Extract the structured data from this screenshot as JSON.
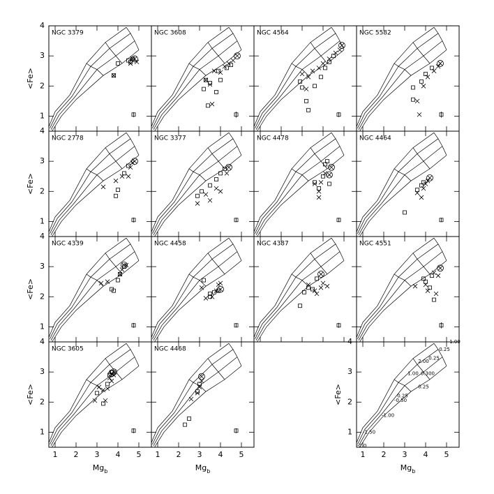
{
  "model_grid": {
    "lines": [
      {
        "x": [
          0.85,
          1.3,
          2.0,
          3.3,
          4.2,
          5.0
        ],
        "y": [
          0.5,
          1.0,
          1.55,
          2.35,
          2.75,
          3.2
        ]
      },
      {
        "x": [
          0.8,
          1.2,
          1.9,
          3.0,
          3.9,
          4.8
        ],
        "y": [
          0.55,
          1.05,
          1.6,
          2.55,
          3.0,
          3.5
        ]
      },
      {
        "x": [
          0.75,
          1.1,
          1.8,
          2.7,
          3.6,
          4.6
        ],
        "y": [
          0.6,
          1.1,
          1.65,
          2.65,
          3.25,
          3.75
        ]
      },
      {
        "x": [
          0.7,
          1.0,
          1.7,
          2.5,
          3.4,
          4.4
        ],
        "y": [
          0.65,
          1.15,
          1.7,
          2.75,
          3.45,
          3.95
        ]
      },
      {
        "x": [
          3.3,
          3.0,
          2.7,
          2.5
        ],
        "y": [
          2.35,
          2.55,
          2.65,
          2.75
        ]
      },
      {
        "x": [
          4.2,
          3.9,
          3.6,
          3.4
        ],
        "y": [
          2.75,
          3.0,
          3.25,
          3.45
        ]
      },
      {
        "x": [
          5.0,
          4.8,
          4.6,
          4.4
        ],
        "y": [
          3.2,
          3.5,
          3.75,
          3.95
        ]
      }
    ]
  },
  "chart_data": [
    {
      "type": "scatter",
      "title": "NGC 3379",
      "ylabel": "<Fe>",
      "xlim": [
        0.7,
        5.6
      ],
      "ylim": [
        0.5,
        4
      ],
      "xticks": [
        1,
        2,
        3,
        4,
        5
      ],
      "yticks": [
        1,
        2,
        3,
        4
      ],
      "series": [
        {
          "marker": "square",
          "x": [
            4.0,
            3.8,
            4.5,
            4.6,
            4.7
          ],
          "y": [
            2.75,
            2.35,
            2.85,
            2.8,
            2.9
          ]
        },
        {
          "marker": "cross",
          "x": [
            3.8,
            4.6,
            4.7,
            4.9
          ],
          "y": [
            2.35,
            2.75,
            2.9,
            2.8
          ]
        },
        {
          "marker": "circle-cross",
          "x": [
            4.8
          ],
          "y": [
            2.9
          ]
        }
      ],
      "errorbar": {
        "x": 4.75,
        "y": 1.05,
        "yerr": 0.08
      }
    },
    {
      "type": "scatter",
      "title": "NGC 3608",
      "xlim": [
        0.7,
        5.6
      ],
      "ylim": [
        0.5,
        4
      ],
      "xticks": [
        1,
        2,
        3,
        4,
        5
      ],
      "yticks": [
        1,
        2,
        3,
        4
      ],
      "series": [
        {
          "marker": "square",
          "x": [
            3.2,
            3.5,
            3.4,
            3.8,
            4.0,
            4.3,
            4.5,
            3.3,
            3.9
          ],
          "y": [
            1.9,
            2.1,
            1.35,
            1.8,
            2.2,
            2.6,
            2.7,
            2.2,
            2.5
          ]
        },
        {
          "marker": "cross",
          "x": [
            3.3,
            3.5,
            3.7,
            4.0,
            4.2,
            4.4,
            4.6,
            3.6
          ],
          "y": [
            2.2,
            2.05,
            2.5,
            2.45,
            2.65,
            2.75,
            2.85,
            1.4
          ]
        },
        {
          "marker": "circle-cross",
          "x": [
            4.8
          ],
          "y": [
            3.0
          ]
        }
      ],
      "errorbar": {
        "x": 4.75,
        "y": 1.05,
        "yerr": 0.1
      }
    },
    {
      "type": "scatter",
      "title": "NGC 4564",
      "xlim": [
        0.7,
        5.6
      ],
      "ylim": [
        0.5,
        4
      ],
      "xticks": [
        1,
        2,
        3,
        4,
        5
      ],
      "yticks": [
        1,
        2,
        3,
        4
      ],
      "series": [
        {
          "marker": "square",
          "x": [
            2.9,
            3.2,
            3.6,
            3.9,
            4.1,
            4.3,
            3.3,
            3.0,
            4.5
          ],
          "y": [
            2.15,
            1.5,
            2.0,
            2.3,
            2.6,
            2.8,
            1.2,
            1.95,
            3.0
          ]
        },
        {
          "marker": "cross",
          "x": [
            3.0,
            3.3,
            3.5,
            3.8,
            4.0,
            4.3,
            4.6,
            4.8,
            3.2
          ],
          "y": [
            2.4,
            2.3,
            2.5,
            2.6,
            2.75,
            2.9,
            3.1,
            3.2,
            1.9
          ]
        },
        {
          "marker": "circle-cross",
          "x": [
            4.9
          ],
          "y": [
            3.35
          ]
        }
      ],
      "errorbar": {
        "x": 4.75,
        "y": 1.05,
        "yerr": 0.08
      }
    },
    {
      "type": "scatter",
      "title": "NGC 5582",
      "xlim": [
        0.7,
        5.6
      ],
      "ylim": [
        0.5,
        4
      ],
      "xticks": [
        1,
        2,
        3,
        4,
        5
      ],
      "yticks": [
        1,
        2,
        3,
        4
      ],
      "series": [
        {
          "marker": "square",
          "x": [
            3.4,
            3.8,
            4.0,
            4.3,
            3.4
          ],
          "y": [
            1.95,
            2.15,
            2.4,
            2.6,
            1.55
          ]
        },
        {
          "marker": "cross",
          "x": [
            3.6,
            3.9,
            4.1,
            4.4,
            4.6,
            3.7
          ],
          "y": [
            1.5,
            2.0,
            2.3,
            2.5,
            2.65,
            1.05
          ]
        },
        {
          "marker": "circle-cross",
          "x": [
            4.7
          ],
          "y": [
            2.75
          ]
        }
      ],
      "errorbar": {
        "x": 4.75,
        "y": 1.05,
        "yerr": 0.1
      }
    },
    {
      "type": "scatter",
      "title": "NGC 2778",
      "ylabel": "<Fe>",
      "xlim": [
        0.7,
        5.6
      ],
      "ylim": [
        0.5,
        4
      ],
      "xticks": [
        1,
        2,
        3,
        4,
        5
      ],
      "yticks": [
        1,
        2,
        3,
        4
      ],
      "series": [
        {
          "marker": "square",
          "x": [
            4.0,
            4.3,
            4.5,
            3.9
          ],
          "y": [
            2.05,
            2.6,
            2.85,
            1.85
          ]
        },
        {
          "marker": "cross",
          "x": [
            3.3,
            3.9,
            4.2,
            4.5,
            4.6,
            4.7
          ],
          "y": [
            2.15,
            2.35,
            2.5,
            2.5,
            2.8,
            2.95
          ]
        },
        {
          "marker": "circle-cross",
          "x": [
            4.8
          ],
          "y": [
            3.0
          ]
        }
      ],
      "errorbar": {
        "x": 4.75,
        "y": 1.05,
        "yerr": 0.08
      }
    },
    {
      "type": "scatter",
      "title": "NGC 3377",
      "xlim": [
        0.7,
        5.6
      ],
      "ylim": [
        0.5,
        4
      ],
      "xticks": [
        1,
        2,
        3,
        4,
        5
      ],
      "yticks": [
        1,
        2,
        3,
        4
      ],
      "series": [
        {
          "marker": "square",
          "x": [
            2.9,
            3.1,
            3.5,
            3.8,
            4.0,
            4.2
          ],
          "y": [
            1.85,
            2.0,
            2.2,
            2.4,
            2.6,
            2.75
          ]
        },
        {
          "marker": "cross",
          "x": [
            2.9,
            3.3,
            3.5,
            3.8,
            4.0,
            4.3
          ],
          "y": [
            1.6,
            1.9,
            1.7,
            2.1,
            2.0,
            2.6
          ]
        },
        {
          "marker": "circle-cross",
          "x": [
            4.4
          ],
          "y": [
            2.8
          ]
        }
      ],
      "errorbar": {
        "x": 4.75,
        "y": 1.05,
        "yerr": 0.07
      }
    },
    {
      "type": "scatter",
      "title": "NGC 4478",
      "xlim": [
        0.7,
        5.6
      ],
      "ylim": [
        0.5,
        4
      ],
      "xticks": [
        1,
        2,
        3,
        4,
        5
      ],
      "yticks": [
        1,
        2,
        3,
        4
      ],
      "series": [
        {
          "marker": "square",
          "x": [
            3.6,
            3.8,
            4.0,
            4.1,
            4.2,
            4.3
          ],
          "y": [
            2.3,
            2.1,
            2.5,
            2.9,
            3.0,
            2.25
          ]
        },
        {
          "marker": "cross",
          "x": [
            3.6,
            3.8,
            3.9,
            4.1,
            3.8
          ],
          "y": [
            2.25,
            2.0,
            2.3,
            2.6,
            1.8
          ]
        },
        {
          "marker": "circle-cross",
          "x": [
            4.4,
            4.3
          ],
          "y": [
            2.8,
            2.55
          ]
        }
      ],
      "errorbar": {
        "x": 4.75,
        "y": 1.05,
        "yerr": 0.07
      }
    },
    {
      "type": "scatter",
      "title": "NGC 4464",
      "xlim": [
        0.7,
        5.6
      ],
      "ylim": [
        0.5,
        4
      ],
      "xticks": [
        1,
        2,
        3,
        4,
        5
      ],
      "yticks": [
        1,
        2,
        3,
        4
      ],
      "series": [
        {
          "marker": "square",
          "x": [
            3.0,
            3.6,
            3.8,
            3.9
          ],
          "y": [
            1.3,
            2.05,
            2.2,
            2.3
          ]
        },
        {
          "marker": "cross",
          "x": [
            3.6,
            3.8,
            3.9,
            4.0,
            4.1
          ],
          "y": [
            1.95,
            1.8,
            2.1,
            2.25,
            2.35
          ]
        },
        {
          "marker": "circle-cross",
          "x": [
            4.2
          ],
          "y": [
            2.45
          ]
        }
      ],
      "errorbar": {
        "x": 4.75,
        "y": 1.05,
        "yerr": 0.07
      }
    },
    {
      "type": "scatter",
      "title": "NGC 4339",
      "ylabel": "<Fe>",
      "xlim": [
        0.7,
        5.6
      ],
      "ylim": [
        0.5,
        4
      ],
      "xticks": [
        1,
        2,
        3,
        4,
        5
      ],
      "yticks": [
        1,
        2,
        3,
        4
      ],
      "series": [
        {
          "marker": "square",
          "x": [
            3.7,
            3.8,
            4.0,
            4.1,
            4.3
          ],
          "y": [
            2.25,
            2.2,
            2.55,
            2.75,
            3.0
          ]
        },
        {
          "marker": "cross",
          "x": [
            3.2,
            3.5,
            4.1,
            4.2,
            4.4
          ],
          "y": [
            2.45,
            2.5,
            2.75,
            2.9,
            3.05
          ]
        },
        {
          "marker": "circle-cross",
          "x": [
            4.3
          ],
          "y": [
            3.05
          ]
        }
      ],
      "errorbar": {
        "x": 4.75,
        "y": 1.05,
        "yerr": 0.08
      }
    },
    {
      "type": "scatter",
      "title": "NGC 4458",
      "xlim": [
        0.7,
        5.6
      ],
      "ylim": [
        0.5,
        4
      ],
      "xticks": [
        1,
        2,
        3,
        4,
        5
      ],
      "yticks": [
        1,
        2,
        3,
        4
      ],
      "series": [
        {
          "marker": "square",
          "x": [
            3.5,
            3.5,
            3.7,
            3.9,
            3.2
          ],
          "y": [
            2.0,
            2.1,
            2.15,
            2.2,
            2.55
          ]
        },
        {
          "marker": "cross",
          "x": [
            3.1,
            3.3,
            3.6,
            3.8,
            3.9,
            4.0
          ],
          "y": [
            2.3,
            1.95,
            2.0,
            2.2,
            2.4,
            2.45
          ]
        },
        {
          "marker": "circle-cross",
          "x": [
            4.0
          ],
          "y": [
            2.25
          ]
        }
      ],
      "errorbar": {
        "x": 4.75,
        "y": 1.05,
        "yerr": 0.07
      }
    },
    {
      "type": "scatter",
      "title": "NGC 4387",
      "xlim": [
        0.7,
        5.6
      ],
      "ylim": [
        0.5,
        4
      ],
      "xticks": [
        1,
        2,
        3,
        4,
        5
      ],
      "yticks": [
        1,
        2,
        3,
        4
      ],
      "series": [
        {
          "marker": "square",
          "x": [
            2.9,
            3.1,
            3.3,
            3.5,
            3.7
          ],
          "y": [
            1.7,
            2.15,
            2.3,
            2.25,
            2.6
          ]
        },
        {
          "marker": "cross",
          "x": [
            3.3,
            3.6,
            3.9,
            4.0,
            4.2,
            3.7
          ],
          "y": [
            2.4,
            2.2,
            2.3,
            2.45,
            2.35,
            2.1
          ]
        },
        {
          "marker": "circle-cross",
          "x": [
            3.9
          ],
          "y": [
            2.75
          ]
        }
      ],
      "errorbar": {
        "x": 4.75,
        "y": 1.05,
        "yerr": 0.08
      }
    },
    {
      "type": "scatter",
      "title": "NGC 4551",
      "xlim": [
        0.7,
        5.6
      ],
      "ylim": [
        0.5,
        4
      ],
      "xticks": [
        1,
        2,
        3,
        4,
        5
      ],
      "yticks": [
        1,
        2,
        3,
        4
      ],
      "series": [
        {
          "marker": "square",
          "x": [
            3.9,
            4.0,
            4.2,
            4.4,
            4.3
          ],
          "y": [
            2.6,
            2.5,
            2.3,
            1.9,
            2.7
          ]
        },
        {
          "marker": "cross",
          "x": [
            3.5,
            4.0,
            4.1,
            4.4,
            4.6,
            4.5
          ],
          "y": [
            2.35,
            2.4,
            2.2,
            2.8,
            2.7,
            2.1
          ]
        },
        {
          "marker": "circle-cross",
          "x": [
            4.7
          ],
          "y": [
            2.95
          ]
        }
      ],
      "errorbar": {
        "x": 4.75,
        "y": 1.05,
        "yerr": 0.1
      }
    },
    {
      "type": "scatter",
      "title": "NGC 3605",
      "ylabel": "<Fe>",
      "xlabel": "Mg",
      "xlabel_sub": "b",
      "xlim": [
        0.7,
        5.6
      ],
      "ylim": [
        0.5,
        4
      ],
      "xticks": [
        1,
        2,
        3,
        4,
        5
      ],
      "yticks": [
        1,
        2,
        3,
        4
      ],
      "series": [
        {
          "marker": "square",
          "x": [
            3.0,
            3.3,
            3.5,
            3.6,
            3.7
          ],
          "y": [
            2.3,
            1.95,
            2.6,
            2.9,
            3.0
          ]
        },
        {
          "marker": "cross",
          "x": [
            2.9,
            3.1,
            3.3,
            3.5,
            3.6,
            3.7,
            3.8,
            3.4
          ],
          "y": [
            2.05,
            2.5,
            2.4,
            2.45,
            2.8,
            2.7,
            2.9,
            2.05
          ]
        },
        {
          "marker": "circle-cross",
          "x": [
            3.7,
            3.8
          ],
          "y": [
            2.95,
            3.0
          ]
        }
      ],
      "errorbar": {
        "x": 4.75,
        "y": 1.05,
        "yerr": 0.08
      }
    },
    {
      "type": "scatter",
      "title": "NGC 4468",
      "xlabel": "Mg",
      "xlabel_sub": "b",
      "xlim": [
        0.7,
        5.6
      ],
      "ylim": [
        0.5,
        4
      ],
      "xticks": [
        1,
        2,
        3,
        4,
        5
      ],
      "yticks": [
        1,
        2,
        3,
        4
      ],
      "series": [
        {
          "marker": "square",
          "x": [
            2.3,
            2.5,
            2.9,
            3.0
          ],
          "y": [
            1.25,
            1.45,
            2.35,
            2.6
          ]
        },
        {
          "marker": "cross",
          "x": [
            2.6,
            2.9,
            3.0,
            3.1
          ],
          "y": [
            2.1,
            2.3,
            2.5,
            2.7
          ]
        },
        {
          "marker": "circle-cross",
          "x": [
            3.1
          ],
          "y": [
            2.85
          ]
        }
      ],
      "errorbar": {
        "x": 4.75,
        "y": 1.05,
        "yerr": 0.08
      }
    },
    {
      "type": "scatter",
      "ylabel": "<Fe>",
      "xlabel": "Mg",
      "xlabel_sub": "b",
      "xlim": [
        0.7,
        5.6
      ],
      "ylim": [
        0.5,
        4
      ],
      "xticks": [
        1,
        2,
        3,
        4,
        5
      ],
      "yticks": [
        1,
        2,
        3,
        4
      ],
      "annotations": [
        {
          "text": "-2.0",
          "x": 0.95,
          "y": 0.55
        },
        {
          "text": "-1.50",
          "x": 1.3,
          "y": 1.0
        },
        {
          "text": "-1.00",
          "x": 2.2,
          "y": 1.55
        },
        {
          "text": "-0.50",
          "x": 2.8,
          "y": 2.05
        },
        {
          "text": "0.25",
          "x": 2.9,
          "y": 2.2
        },
        {
          "text": "0.25",
          "x": 3.9,
          "y": 2.5
        },
        {
          "text": "1.00",
          "x": 3.4,
          "y": 2.95
        },
        {
          "text": "0.300",
          "x": 4.1,
          "y": 2.95
        },
        {
          "text": "2.00",
          "x": 3.9,
          "y": 3.35
        },
        {
          "text": "0.25",
          "x": 4.4,
          "y": 3.45
        },
        {
          "text": "0.25",
          "x": 4.9,
          "y": 3.75
        },
        {
          "text": "1.00",
          "x": 5.4,
          "y": 4.0
        }
      ]
    }
  ]
}
